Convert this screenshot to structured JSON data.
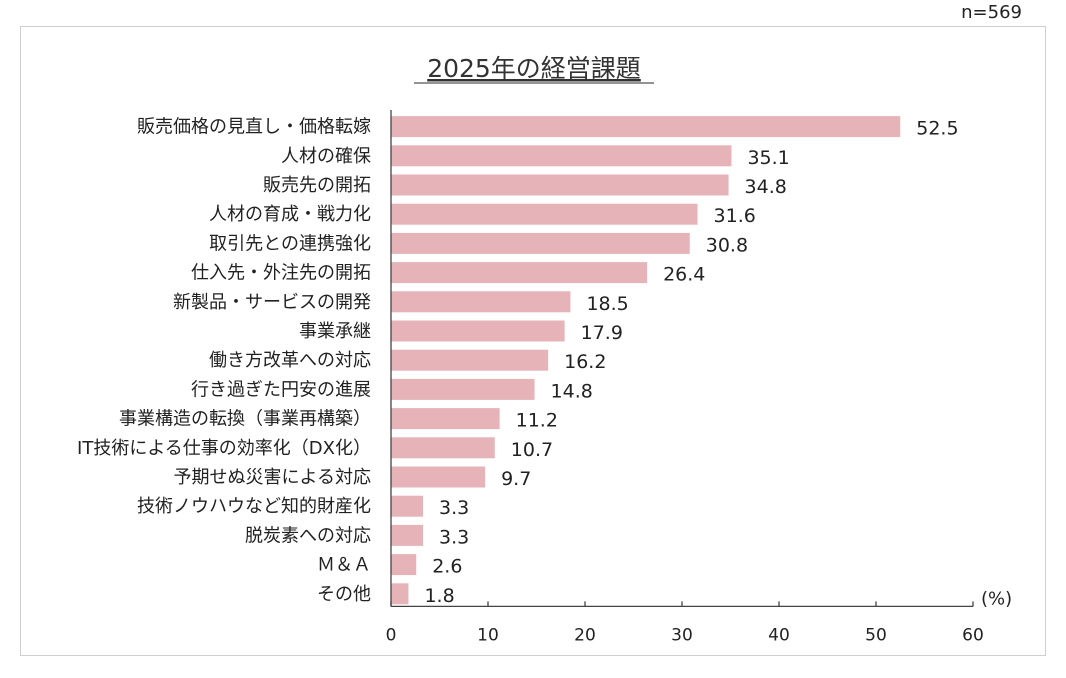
{
  "sample_size": "n=569",
  "chart_data": {
    "type": "bar",
    "orientation": "horizontal",
    "title": "2025年の経営課題",
    "unit": "(%)",
    "categories": [
      "販売価格の見直し・価格転嫁",
      "人材の確保",
      "販売先の開拓",
      "人材の育成・戦力化",
      "取引先との連携強化",
      "仕入先・外注先の開拓",
      "新製品・サービスの開発",
      "事業承継",
      "働き方改革への対応",
      "行き過ぎた円安の進展",
      "事業構造の転換（事業再構築）",
      "IT技術による仕事の効率化（DX化）",
      "予期せぬ災害による対応",
      "技術ノウハウなど知的財産化",
      "脱炭素への対応",
      "Ｍ＆Ａ",
      "その他"
    ],
    "values": [
      52.5,
      35.1,
      34.8,
      31.6,
      30.8,
      26.4,
      18.5,
      17.9,
      16.2,
      14.8,
      11.2,
      10.7,
      9.7,
      3.3,
      3.3,
      2.6,
      1.8
    ],
    "value_labels": [
      "52.5",
      "35.1",
      "34.8",
      "31.6",
      "30.8",
      "26.4",
      "18.5",
      "17.9",
      "16.2",
      "14.8",
      "11.2",
      "10.7",
      "9.7",
      "3.3",
      "3.3",
      "2.6",
      "1.8"
    ],
    "xlim": [
      0,
      60
    ],
    "xticks": [
      0,
      10,
      20,
      30,
      40,
      50,
      60
    ],
    "bar_color": "#e6b4b8",
    "grid": false
  }
}
